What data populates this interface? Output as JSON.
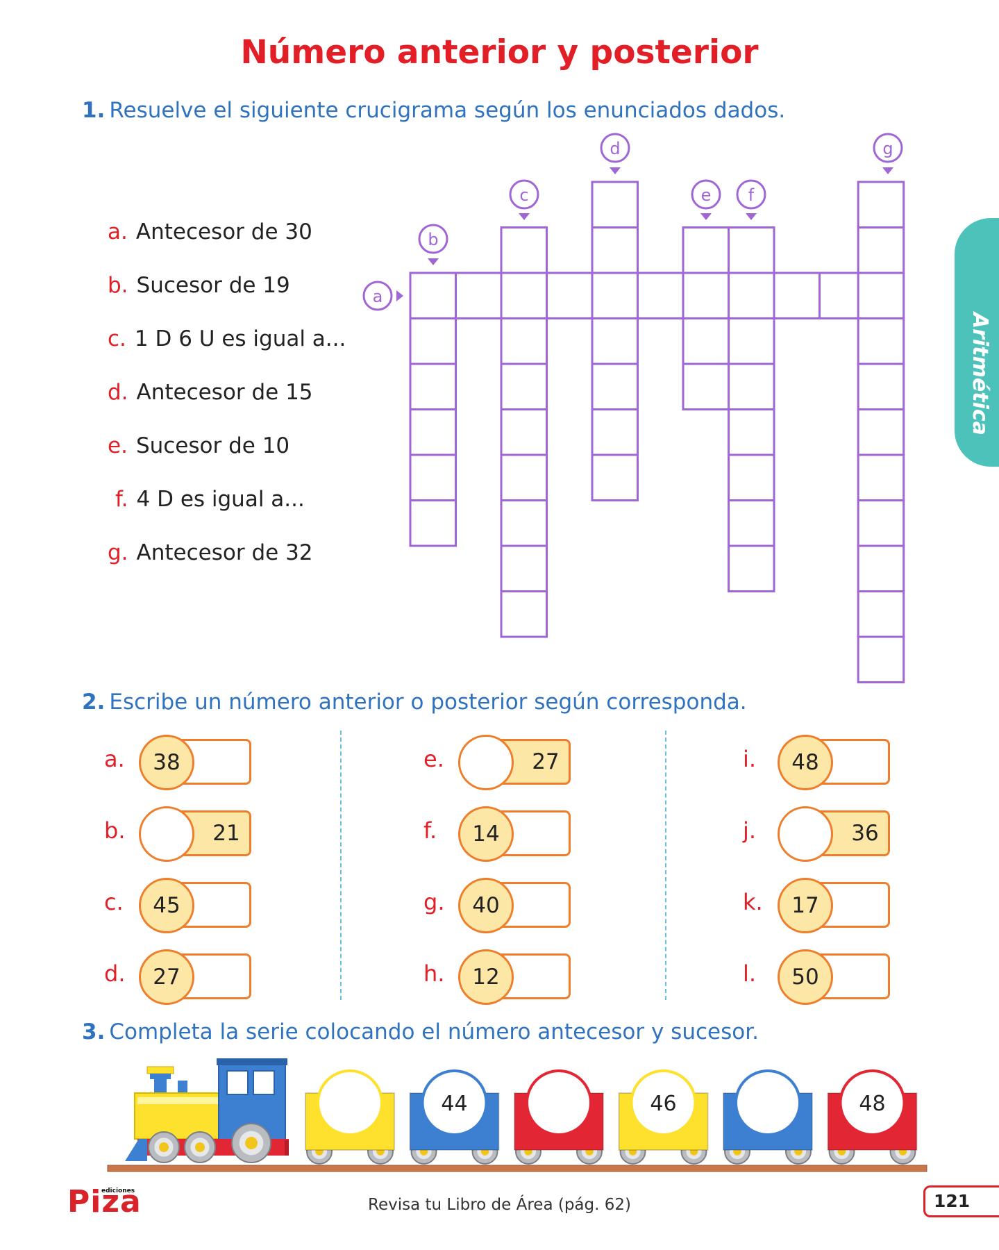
{
  "page": {
    "title": "Número anterior y posterior",
    "tab_label": "Aritmética",
    "footer_text": "Revisa tu Libro de Área (pág. 62)",
    "page_number": "121",
    "logo_main": "Piza",
    "logo_small": "ediciones"
  },
  "exercise1": {
    "number": "1.",
    "instruction": "Resuelve el siguiente crucigrama según los enunciados dados.",
    "clues": [
      {
        "letter": "a.",
        "text": "Antecesor de 30"
      },
      {
        "letter": "b.",
        "text": "Sucesor de 19"
      },
      {
        "letter": "c.",
        "text": "1 D  6 U es igual a..."
      },
      {
        "letter": "d.",
        "text": "Antecesor de 15"
      },
      {
        "letter": "e.",
        "text": "Sucesor de 10"
      },
      {
        "letter": "f.",
        "text": "4 D es igual a..."
      },
      {
        "letter": "g.",
        "text": "Antecesor de 32"
      }
    ],
    "markers": {
      "a": "a",
      "b": "b",
      "c": "c",
      "d": "d",
      "e": "e",
      "f": "f",
      "g": "g"
    }
  },
  "exercise2": {
    "number": "2.",
    "instruction": "Escribe un número anterior o posterior según corresponda.",
    "items": [
      {
        "label": "a.",
        "given": "38",
        "position": "before"
      },
      {
        "label": "b.",
        "given": "21",
        "position": "after"
      },
      {
        "label": "c.",
        "given": "45",
        "position": "before"
      },
      {
        "label": "d.",
        "given": "27",
        "position": "before"
      },
      {
        "label": "e.",
        "given": "27",
        "position": "after"
      },
      {
        "label": "f.",
        "given": "14",
        "position": "before"
      },
      {
        "label": "g.",
        "given": "40",
        "position": "before"
      },
      {
        "label": "h.",
        "given": "12",
        "position": "before"
      },
      {
        "label": "i.",
        "given": "48",
        "position": "before"
      },
      {
        "label": "j.",
        "given": "36",
        "position": "after"
      },
      {
        "label": "k.",
        "given": "17",
        "position": "before"
      },
      {
        "label": "l.",
        "given": "50",
        "position": "before"
      }
    ]
  },
  "exercise3": {
    "number": "3.",
    "instruction": "Completa la serie colocando el número antecesor y sucesor.",
    "cars": [
      {
        "value": "",
        "color": "#fde12d"
      },
      {
        "value": "44",
        "color": "#3d7fd1"
      },
      {
        "value": "",
        "color": "#e32634"
      },
      {
        "value": "46",
        "color": "#fde12d"
      },
      {
        "value": "",
        "color": "#3d7fd1"
      },
      {
        "value": "48",
        "color": "#e32634"
      }
    ]
  },
  "colors": {
    "title_red": "#e21e26",
    "heading_blue": "#2f73c0",
    "grid_purple": "#a066d6",
    "circle_orange": "#ee7e2b",
    "fill_yellow": "#fde7a6",
    "tab_teal": "#4dc2bb"
  }
}
